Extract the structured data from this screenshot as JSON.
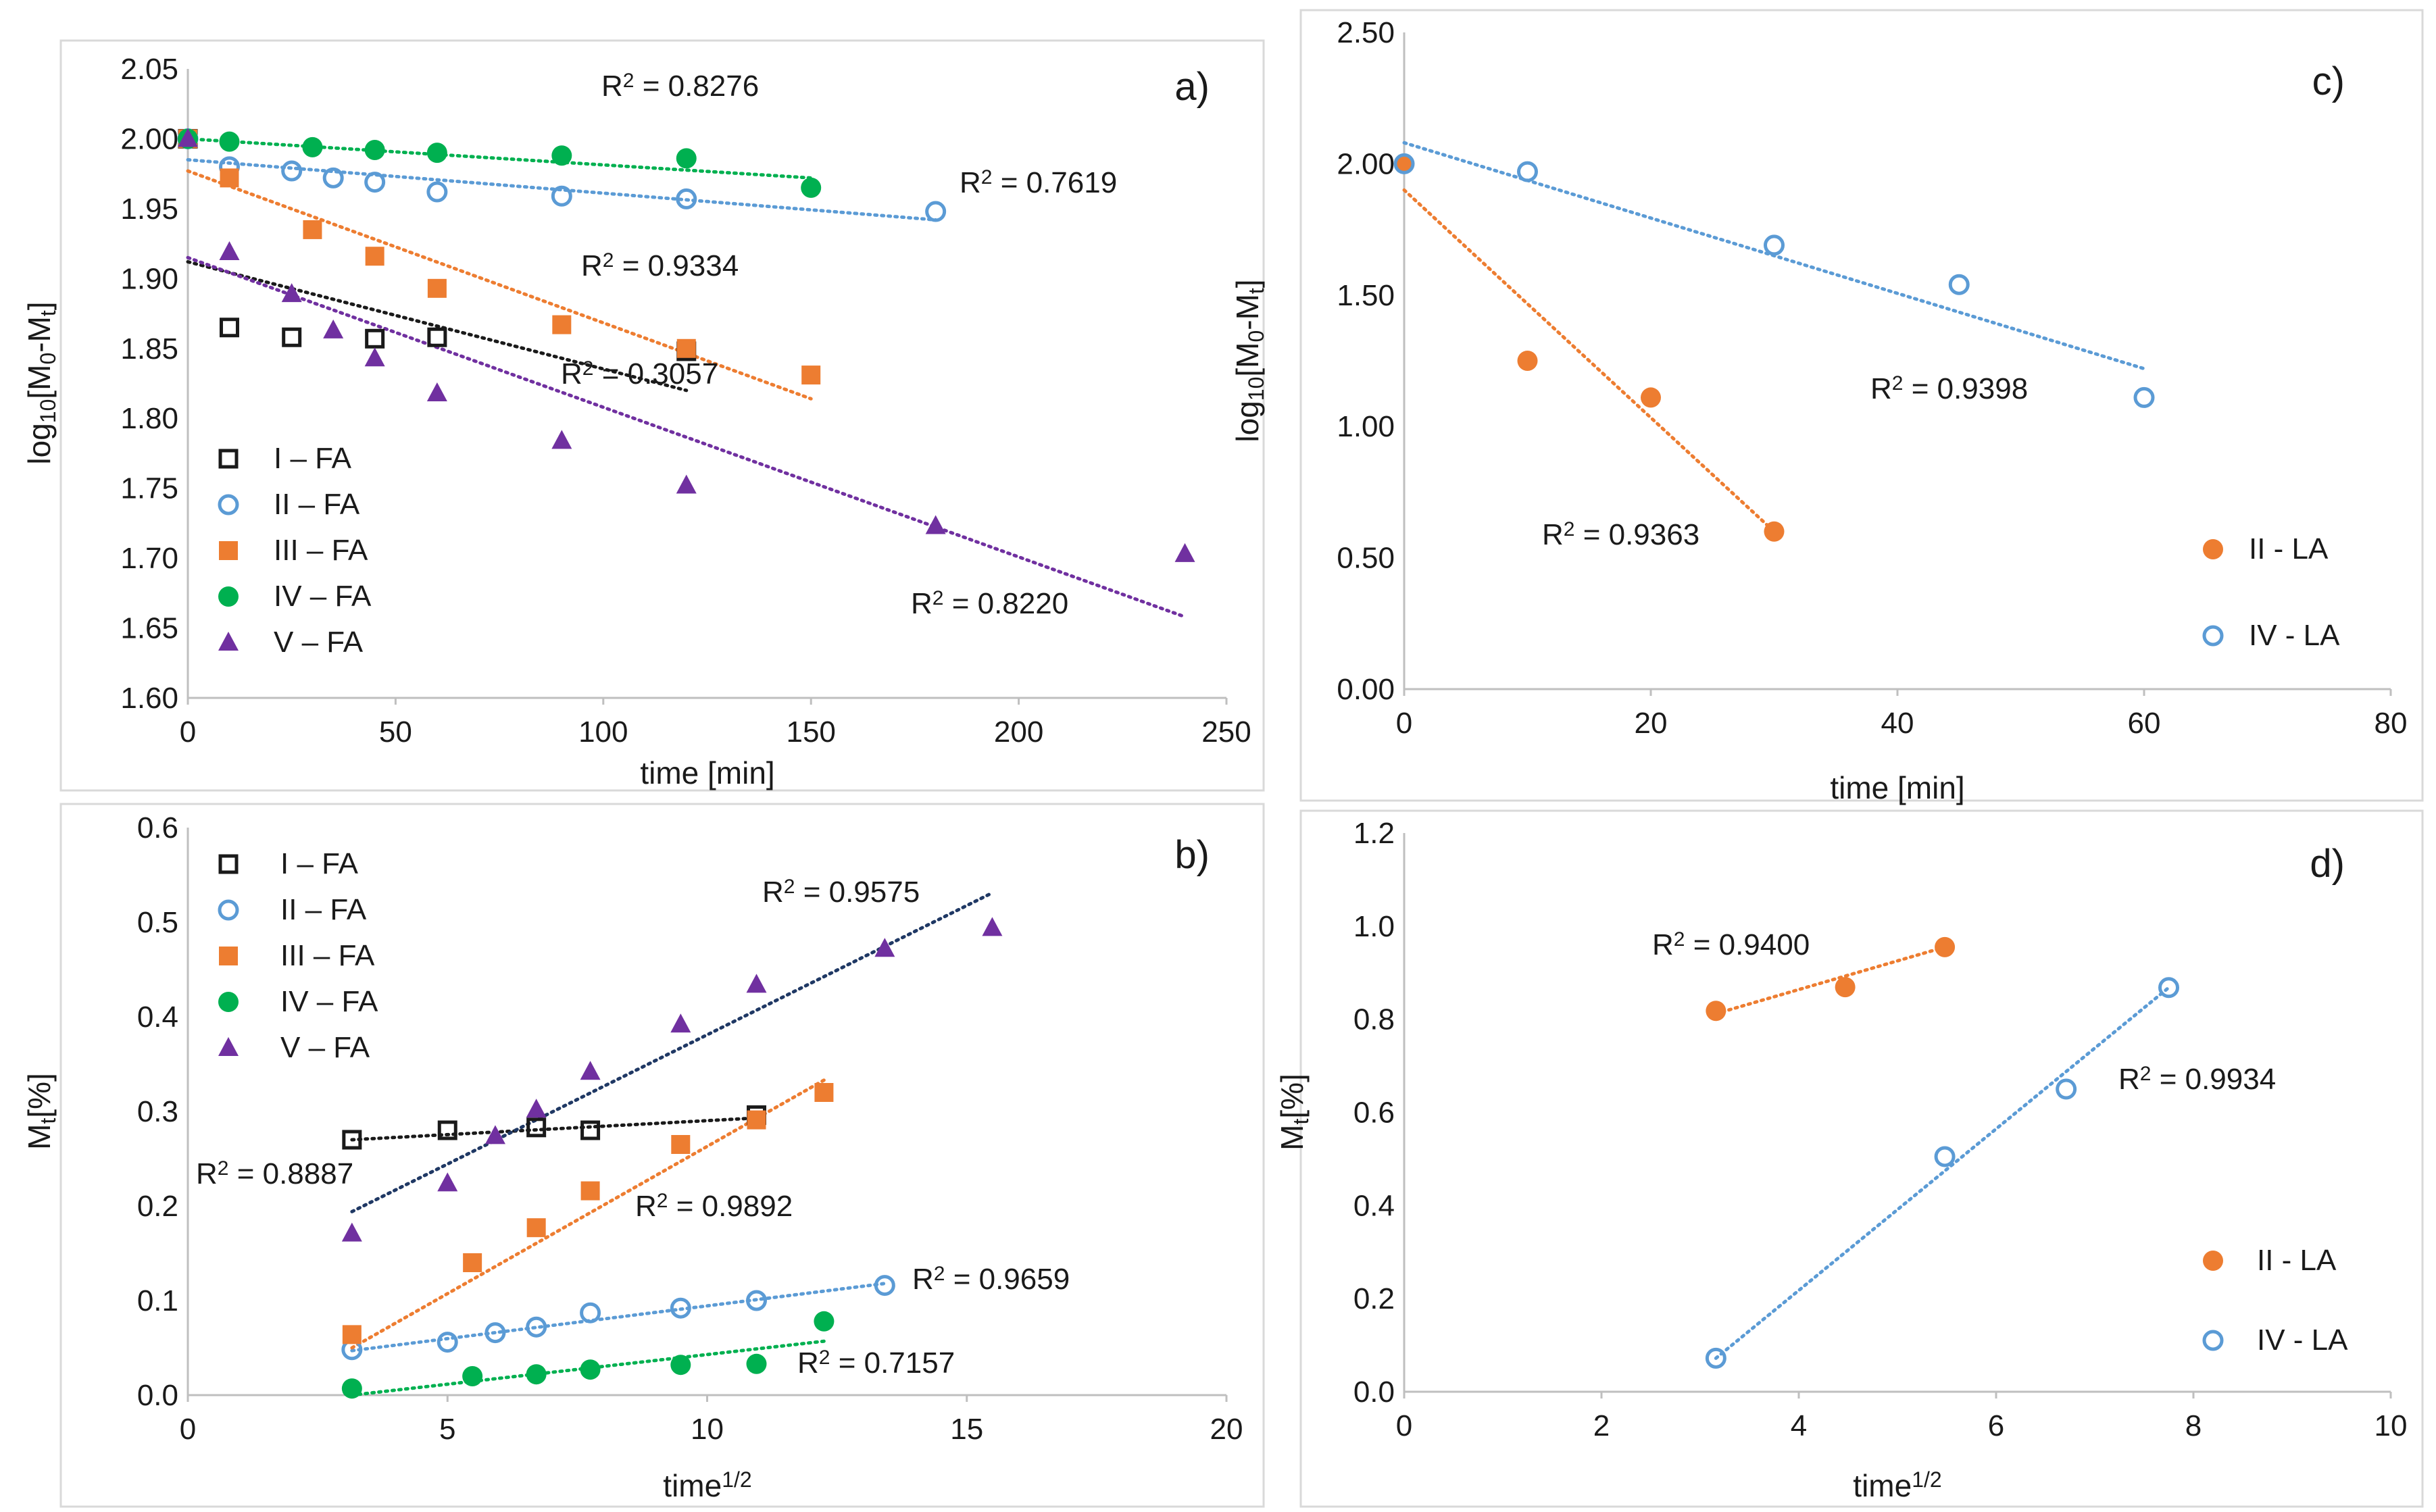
{
  "chart_data": [
    {
      "id": "a",
      "type": "scatter",
      "panel_label": "a)",
      "xlabel": "time [min]",
      "ylabel_main": "log",
      "ylabel_sub1": "10",
      "ylabel_mid": "[M",
      "ylabel_sub2": "0",
      "ylabel_mid2": "-M",
      "ylabel_sub3": "t",
      "ylabel_end": "]",
      "xlim": [
        0,
        250
      ],
      "ylim": [
        1.6,
        2.05
      ],
      "xticks": [
        0,
        50,
        100,
        150,
        200,
        250
      ],
      "xtick_labels": [
        "0",
        "50",
        "100",
        "150",
        "200",
        "250"
      ],
      "yticks": [
        1.6,
        1.65,
        1.7,
        1.75,
        1.8,
        1.85,
        1.9,
        1.95,
        2.0,
        2.05
      ],
      "ytick_labels": [
        "1.60",
        "1.65",
        "1.70",
        "1.75",
        "1.80",
        "1.85",
        "1.90",
        "1.95",
        "2.00",
        "2.05"
      ],
      "legend_position": "bottom-left",
      "series": [
        {
          "name": "I – FA",
          "marker": "square-open",
          "color": "#1a1a1a",
          "x": [
            0,
            10,
            25,
            45,
            60,
            120
          ],
          "y": [
            2.0,
            1.865,
            1.858,
            1.857,
            1.858,
            1.848
          ],
          "trend": [
            [
              0,
              1.912
            ],
            [
              120,
              1.82
            ]
          ],
          "r2_label": "R",
          "r2_value": " = 0.3057"
        },
        {
          "name": "II – FA",
          "marker": "circle-open",
          "color": "#5b9bd5",
          "x": [
            0,
            10,
            25,
            35,
            45,
            60,
            90,
            120,
            180
          ],
          "y": [
            2.0,
            1.98,
            1.977,
            1.972,
            1.969,
            1.962,
            1.959,
            1.957,
            1.948
          ],
          "trend": [
            [
              0,
              1.985
            ],
            [
              180,
              1.942
            ]
          ],
          "r2_label": "R",
          "r2_value": " = 0.7619"
        },
        {
          "name": "III – FA",
          "marker": "square",
          "color": "#ed7d31",
          "x": [
            0,
            10,
            30,
            45,
            60,
            90,
            120,
            150
          ],
          "y": [
            2.0,
            1.972,
            1.935,
            1.916,
            1.893,
            1.867,
            1.85,
            1.831
          ],
          "trend": [
            [
              0,
              1.977
            ],
            [
              150,
              1.814
            ]
          ],
          "r2_label": "R",
          "r2_value": " = 0.9334"
        },
        {
          "name": "IV – FA",
          "marker": "circle",
          "color": "#00b050",
          "x": [
            0,
            10,
            30,
            45,
            60,
            90,
            120,
            150
          ],
          "y": [
            2.0,
            1.998,
            1.994,
            1.992,
            1.99,
            1.988,
            1.986,
            1.965
          ],
          "trend": [
            [
              0,
              2.0
            ],
            [
              150,
              1.972
            ]
          ],
          "r2_label": "R",
          "r2_value": " = 0.8276"
        },
        {
          "name": "V – FA",
          "marker": "triangle",
          "color": "#7030a0",
          "x": [
            0,
            10,
            25,
            35,
            45,
            60,
            90,
            120,
            180,
            240
          ],
          "y": [
            2.0,
            1.919,
            1.889,
            1.863,
            1.843,
            1.818,
            1.784,
            1.752,
            1.723,
            1.703
          ],
          "trend": [
            [
              0,
              1.915
            ],
            [
              240,
              1.658
            ]
          ],
          "r2_label": "R",
          "r2_value": " = 0.8220"
        }
      ]
    },
    {
      "id": "b",
      "type": "scatter",
      "panel_label": "b)",
      "xlabel_main": "time",
      "xlabel_sup": "1/2",
      "ylabel_main": "M",
      "ylabel_sub": "t",
      "ylabel_end": "[%]",
      "xlim": [
        0,
        20
      ],
      "ylim": [
        0,
        0.6
      ],
      "xticks": [
        0,
        5,
        10,
        15,
        20
      ],
      "xtick_labels": [
        "0",
        "5",
        "10",
        "15",
        "20"
      ],
      "yticks": [
        0,
        0.1,
        0.2,
        0.3,
        0.4,
        0.5,
        0.6
      ],
      "ytick_labels": [
        "0.0",
        "0.1",
        "0.2",
        "0.3",
        "0.4",
        "0.5",
        "0.6"
      ],
      "legend_position": "top-left",
      "series": [
        {
          "name": "I – FA",
          "marker": "square-open",
          "color": "#1a1a1a",
          "x": [
            3.16,
            5.0,
            6.71,
            7.75,
            10.95
          ],
          "y": [
            0.27,
            0.28,
            0.283,
            0.28,
            0.296
          ],
          "trend": [
            [
              3.16,
              0.27
            ],
            [
              10.95,
              0.293
            ]
          ],
          "r2_label": "R",
          "r2_value": " = 0.8887"
        },
        {
          "name": "II – FA",
          "marker": "circle-open",
          "color": "#5b9bd5",
          "x": [
            3.16,
            5.0,
            5.92,
            6.71,
            7.75,
            9.49,
            10.95,
            13.42
          ],
          "y": [
            0.048,
            0.056,
            0.066,
            0.072,
            0.087,
            0.092,
            0.1,
            0.116
          ],
          "trend": [
            [
              3.16,
              0.047
            ],
            [
              13.42,
              0.118
            ]
          ],
          "r2_label": "R",
          "r2_value": " = 0.9659"
        },
        {
          "name": "III – FA",
          "marker": "square",
          "color": "#ed7d31",
          "x": [
            3.16,
            5.48,
            6.71,
            7.75,
            9.49,
            10.95,
            12.25
          ],
          "y": [
            0.064,
            0.14,
            0.177,
            0.216,
            0.265,
            0.291,
            0.32
          ],
          "trend": [
            [
              3.16,
              0.05
            ],
            [
              12.25,
              0.333
            ]
          ],
          "r2_label": "R",
          "r2_value": " = 0.9892"
        },
        {
          "name": "IV – FA",
          "marker": "circle",
          "color": "#00b050",
          "x": [
            3.16,
            5.48,
            6.71,
            7.75,
            9.49,
            10.95,
            12.25
          ],
          "y": [
            0.007,
            0.02,
            0.022,
            0.027,
            0.032,
            0.033,
            0.078
          ],
          "trend": [
            [
              3.16,
              0.0
            ],
            [
              12.25,
              0.057
            ]
          ],
          "r2_label": "R",
          "r2_value": " = 0.7157"
        },
        {
          "name": "V – FA",
          "marker": "triangle",
          "color": "#7030a0",
          "x": [
            3.16,
            5.0,
            5.92,
            6.71,
            7.75,
            9.49,
            10.95,
            13.42,
            15.49
          ],
          "y": [
            0.171,
            0.224,
            0.274,
            0.302,
            0.342,
            0.392,
            0.434,
            0.472,
            0.494
          ],
          "trend": [
            [
              3.16,
              0.194
            ],
            [
              15.49,
              0.531
            ]
          ],
          "trend_color": "#1f3864",
          "r2_label": "R",
          "r2_value": " = 0.9575"
        }
      ]
    },
    {
      "id": "c",
      "type": "scatter",
      "panel_label": "c)",
      "xlabel": "time [min]",
      "ylabel_main": "log",
      "ylabel_sub1": "10",
      "ylabel_mid": "[M",
      "ylabel_sub2": "0",
      "ylabel_mid2": "-M",
      "ylabel_sub3": "t",
      "ylabel_end": "]",
      "xlim": [
        0,
        80
      ],
      "ylim": [
        0,
        2.5
      ],
      "xticks": [
        0,
        20,
        40,
        60,
        80
      ],
      "xtick_labels": [
        "0",
        "20",
        "40",
        "60",
        "80"
      ],
      "yticks": [
        0,
        0.5,
        1.0,
        1.5,
        2.0,
        2.5
      ],
      "ytick_labels": [
        "0.00",
        "0.50",
        "1.00",
        "1.50",
        "2.00",
        "2.50"
      ],
      "legend_position": "bottom-right",
      "series": [
        {
          "name": "II - LA",
          "marker": "circle",
          "color": "#ed7d31",
          "x": [
            0,
            10,
            20,
            30
          ],
          "y": [
            2.0,
            1.25,
            1.11,
            0.6
          ],
          "trend": [
            [
              0,
              1.9
            ],
            [
              30,
              0.6
            ]
          ],
          "r2_label": "R",
          "r2_value": " = 0.9363"
        },
        {
          "name": "IV - LA",
          "marker": "circle-open",
          "color": "#5b9bd5",
          "x": [
            0,
            10,
            30,
            45,
            60
          ],
          "y": [
            2.0,
            1.97,
            1.69,
            1.54,
            1.11
          ],
          "trend": [
            [
              0,
              2.08
            ],
            [
              60,
              1.22
            ]
          ],
          "r2_label": "R",
          "r2_value": " = 0.9398"
        }
      ]
    },
    {
      "id": "d",
      "type": "scatter",
      "panel_label": "d)",
      "xlabel_main": "time",
      "xlabel_sup": "1/2",
      "ylabel_main": "M",
      "ylabel_sub": "t",
      "ylabel_end": "[%]",
      "xlim": [
        0,
        10
      ],
      "ylim": [
        0,
        1.2
      ],
      "xticks": [
        0,
        2,
        4,
        6,
        8,
        10
      ],
      "xtick_labels": [
        "0",
        "2",
        "4",
        "6",
        "8",
        "10"
      ],
      "yticks": [
        0,
        0.2,
        0.4,
        0.6,
        0.8,
        1.0,
        1.2
      ],
      "ytick_labels": [
        "0.0",
        "0.2",
        "0.4",
        "0.6",
        "0.8",
        "1.0",
        "1.2"
      ],
      "legend_position": "bottom-right",
      "series": [
        {
          "name": "II - LA",
          "marker": "circle",
          "color": "#ed7d31",
          "x": [
            3.16,
            4.47,
            5.48
          ],
          "y": [
            0.818,
            0.869,
            0.955
          ],
          "trend": [
            [
              3.16,
              0.812
            ],
            [
              5.48,
              0.955
            ]
          ],
          "r2_label": "R",
          "r2_value": " = 0.9400"
        },
        {
          "name": "IV - LA",
          "marker": "circle-open",
          "color": "#5b9bd5",
          "x": [
            3.16,
            5.48,
            6.71,
            7.75
          ],
          "y": [
            0.072,
            0.505,
            0.65,
            0.868
          ],
          "trend": [
            [
              3.16,
              0.072
            ],
            [
              7.75,
              0.868
            ]
          ],
          "r2_label": "R",
          "r2_value": " = 0.9934"
        }
      ]
    }
  ]
}
